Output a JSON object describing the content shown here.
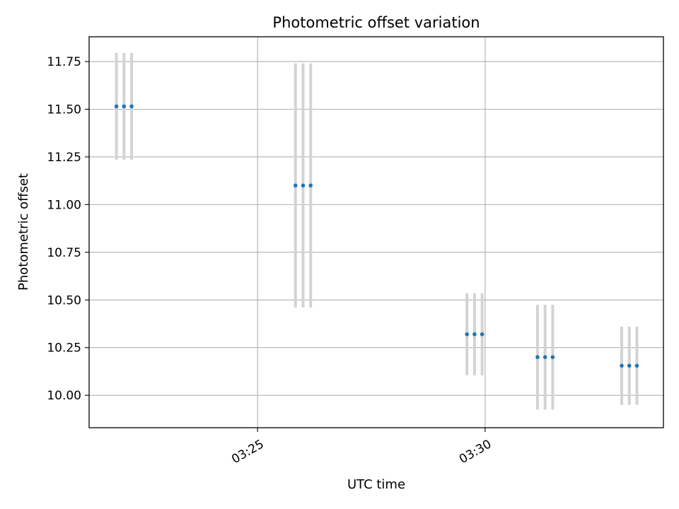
{
  "chart_data": {
    "type": "scatter",
    "title": "Photometric offset variation",
    "xlabel": "UTC time",
    "ylabel": "Photometric offset",
    "x_ticks": [
      "03:25",
      "03:30"
    ],
    "y_ticks": [
      "10.00",
      "10.25",
      "10.50",
      "10.75",
      "11.00",
      "11.25",
      "11.50",
      "11.75"
    ],
    "xlim": [
      "03:21:18",
      "03:33:55"
    ],
    "ylim": [
      9.83,
      11.88
    ],
    "grid": true,
    "series": [
      {
        "error_bar_color": "#d3d3d3",
        "marker_color": "#1f77b4",
        "points": [
          {
            "x": "03:21:54",
            "y": 11.515,
            "yerr": 0.28
          },
          {
            "x": "03:22:04",
            "y": 11.515,
            "yerr": 0.28
          },
          {
            "x": "03:22:14",
            "y": 11.515,
            "yerr": 0.28
          },
          {
            "x": "03:25:50",
            "y": 11.1,
            "yerr": 0.64
          },
          {
            "x": "03:26:00",
            "y": 11.1,
            "yerr": 0.64
          },
          {
            "x": "03:26:10",
            "y": 11.1,
            "yerr": 0.64
          },
          {
            "x": "03:29:36",
            "y": 10.32,
            "yerr": 0.215
          },
          {
            "x": "03:29:46",
            "y": 10.32,
            "yerr": 0.215
          },
          {
            "x": "03:29:56",
            "y": 10.32,
            "yerr": 0.215
          },
          {
            "x": "03:31:09",
            "y": 10.2,
            "yerr": 0.275
          },
          {
            "x": "03:31:19",
            "y": 10.2,
            "yerr": 0.275
          },
          {
            "x": "03:31:29",
            "y": 10.2,
            "yerr": 0.275
          },
          {
            "x": "03:33:00",
            "y": 10.155,
            "yerr": 0.205
          },
          {
            "x": "03:33:10",
            "y": 10.155,
            "yerr": 0.205
          },
          {
            "x": "03:33:20",
            "y": 10.155,
            "yerr": 0.205
          }
        ]
      }
    ]
  }
}
